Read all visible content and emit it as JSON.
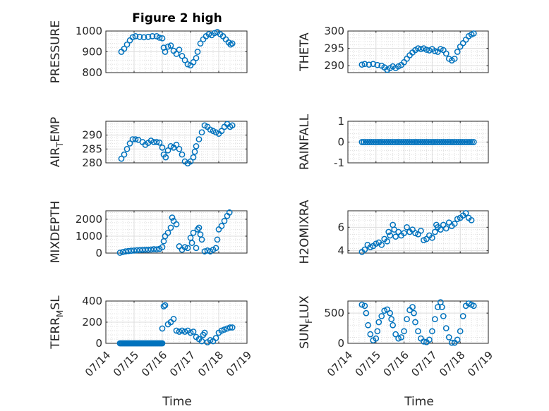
{
  "figure": {
    "title": "Figure 2 high",
    "marker_color": "#0072BD",
    "axes_color": "#262626",
    "grid_color": "#d9d9d9"
  },
  "chart_data": [
    {
      "type": "scatter",
      "marker": "circle",
      "ylabel": "PRESSURE",
      "ylabel_sub": "",
      "ylim": [
        800,
        1000
      ],
      "yticks": [
        800,
        900,
        1000
      ],
      "xlim": [
        0,
        5
      ],
      "xticks": [
        0,
        1,
        2,
        3,
        4,
        5
      ],
      "xtick_labels": [
        "07/14",
        "07/15",
        "07/16",
        "07/17",
        "07/18",
        "07/19"
      ],
      "show_xticks": false,
      "grid": true,
      "minor_grid": true,
      "points": [
        [
          0.55,
          900
        ],
        [
          0.65,
          915
        ],
        [
          0.75,
          935
        ],
        [
          0.85,
          955
        ],
        [
          0.95,
          970
        ],
        [
          1.05,
          975
        ],
        [
          1.2,
          972
        ],
        [
          1.35,
          970
        ],
        [
          1.5,
          972
        ],
        [
          1.65,
          975
        ],
        [
          1.8,
          975
        ],
        [
          1.9,
          968
        ],
        [
          2.0,
          965
        ],
        [
          2.05,
          920
        ],
        [
          2.1,
          900
        ],
        [
          2.2,
          925
        ],
        [
          2.3,
          930
        ],
        [
          2.4,
          905
        ],
        [
          2.5,
          890
        ],
        [
          2.6,
          910
        ],
        [
          2.7,
          880
        ],
        [
          2.8,
          860
        ],
        [
          2.9,
          840
        ],
        [
          3.0,
          835
        ],
        [
          3.1,
          850
        ],
        [
          3.2,
          870
        ],
        [
          3.25,
          900
        ],
        [
          3.35,
          940
        ],
        [
          3.45,
          960
        ],
        [
          3.55,
          975
        ],
        [
          3.65,
          985
        ],
        [
          3.75,
          980
        ],
        [
          3.85,
          990
        ],
        [
          3.95,
          995
        ],
        [
          4.05,
          985
        ],
        [
          4.15,
          975
        ],
        [
          4.25,
          960
        ],
        [
          4.35,
          945
        ],
        [
          4.42,
          935
        ],
        [
          4.48,
          940
        ]
      ]
    },
    {
      "type": "scatter",
      "marker": "circle",
      "ylabel": "THETA",
      "ylabel_sub": "",
      "ylim": [
        288,
        300
      ],
      "yticks": [
        290,
        295,
        300
      ],
      "xlim": [
        0,
        5
      ],
      "xticks": [
        0,
        1,
        2,
        3,
        4,
        5
      ],
      "xtick_labels": [
        "07/14",
        "07/15",
        "07/16",
        "07/17",
        "07/18",
        "07/19"
      ],
      "show_xticks": false,
      "grid": true,
      "minor_grid": true,
      "points": [
        [
          0.5,
          290.3
        ],
        [
          0.6,
          290.5
        ],
        [
          0.75,
          290.3
        ],
        [
          0.9,
          290.5
        ],
        [
          1.05,
          290.2
        ],
        [
          1.2,
          290.0
        ],
        [
          1.3,
          289.5
        ],
        [
          1.4,
          288.8
        ],
        [
          1.5,
          289.3
        ],
        [
          1.6,
          289.8
        ],
        [
          1.7,
          289.3
        ],
        [
          1.8,
          289.8
        ],
        [
          1.9,
          290.2
        ],
        [
          2.0,
          291.0
        ],
        [
          2.1,
          292.0
        ],
        [
          2.2,
          293.0
        ],
        [
          2.3,
          293.8
        ],
        [
          2.4,
          294.5
        ],
        [
          2.5,
          295.0
        ],
        [
          2.6,
          294.8
        ],
        [
          2.7,
          295.0
        ],
        [
          2.8,
          294.6
        ],
        [
          2.9,
          294.4
        ],
        [
          3.0,
          294.8
        ],
        [
          3.1,
          294.2
        ],
        [
          3.2,
          294.0
        ],
        [
          3.3,
          294.8
        ],
        [
          3.4,
          294.5
        ],
        [
          3.5,
          293.5
        ],
        [
          3.6,
          292.0
        ],
        [
          3.7,
          291.5
        ],
        [
          3.8,
          292.0
        ],
        [
          3.9,
          294.0
        ],
        [
          4.0,
          295.5
        ],
        [
          4.1,
          296.5
        ],
        [
          4.2,
          297.5
        ],
        [
          4.3,
          298.5
        ],
        [
          4.4,
          299.0
        ],
        [
          4.48,
          299.3
        ]
      ]
    },
    {
      "type": "scatter",
      "marker": "circle",
      "ylabel": "AIR",
      "ylabel_sub": "T",
      "ylabel_suffix": "EMP",
      "ylim": [
        280,
        295
      ],
      "yticks": [
        280,
        285,
        290
      ],
      "xlim": [
        0,
        5
      ],
      "xticks": [
        0,
        1,
        2,
        3,
        4,
        5
      ],
      "xtick_labels": [
        "07/14",
        "07/15",
        "07/16",
        "07/17",
        "07/18",
        "07/19"
      ],
      "show_xticks": false,
      "grid": true,
      "minor_grid": true,
      "points": [
        [
          0.55,
          281.5
        ],
        [
          0.65,
          283
        ],
        [
          0.75,
          285
        ],
        [
          0.85,
          287
        ],
        [
          0.95,
          288.5
        ],
        [
          1.05,
          288.5
        ],
        [
          1.15,
          288.3
        ],
        [
          1.3,
          287.5
        ],
        [
          1.4,
          286.5
        ],
        [
          1.5,
          287.2
        ],
        [
          1.6,
          288
        ],
        [
          1.7,
          287.5
        ],
        [
          1.8,
          287.5
        ],
        [
          1.9,
          287.3
        ],
        [
          2.0,
          285.5
        ],
        [
          2.05,
          283
        ],
        [
          2.12,
          282
        ],
        [
          2.2,
          284.5
        ],
        [
          2.3,
          286
        ],
        [
          2.4,
          285.5
        ],
        [
          2.5,
          286.5
        ],
        [
          2.6,
          285
        ],
        [
          2.7,
          283
        ],
        [
          2.8,
          280.5
        ],
        [
          2.9,
          279.8
        ],
        [
          3.0,
          280.5
        ],
        [
          3.1,
          282
        ],
        [
          3.15,
          284
        ],
        [
          3.2,
          286
        ],
        [
          3.3,
          288.5
        ],
        [
          3.4,
          291
        ],
        [
          3.5,
          293.5
        ],
        [
          3.6,
          293
        ],
        [
          3.7,
          292
        ],
        [
          3.8,
          291.5
        ],
        [
          3.9,
          291
        ],
        [
          4.0,
          290.5
        ],
        [
          4.1,
          291.5
        ],
        [
          4.2,
          293
        ],
        [
          4.3,
          294
        ],
        [
          4.4,
          293
        ],
        [
          4.48,
          293.5
        ]
      ]
    },
    {
      "type": "scatter",
      "marker": "circle",
      "ylabel": "RAINFALL",
      "ylabel_sub": "",
      "ylim": [
        -1,
        1
      ],
      "yticks": [
        -1,
        0,
        1
      ],
      "xlim": [
        0,
        5
      ],
      "xticks": [
        0,
        1,
        2,
        3,
        4,
        5
      ],
      "xtick_labels": [
        "07/14",
        "07/15",
        "07/16",
        "07/17",
        "07/18",
        "07/19"
      ],
      "show_xticks": false,
      "grid": true,
      "minor_grid": true,
      "points_uniform": {
        "x_start": 0.5,
        "x_end": 4.48,
        "count": 60,
        "y": 0
      }
    },
    {
      "type": "scatter",
      "marker": "circle",
      "ylabel": "MIXDEPTH",
      "ylabel_sub": "",
      "ylim": [
        0,
        2500
      ],
      "yticks": [
        0,
        1000,
        2000
      ],
      "xlim": [
        0,
        5
      ],
      "xticks": [
        0,
        1,
        2,
        3,
        4,
        5
      ],
      "xtick_labels": [
        "07/14",
        "07/15",
        "07/16",
        "07/17",
        "07/18",
        "07/19"
      ],
      "show_xticks": false,
      "grid": true,
      "minor_grid": true,
      "points": [
        [
          0.5,
          20
        ],
        [
          0.6,
          60
        ],
        [
          0.7,
          100
        ],
        [
          0.8,
          120
        ],
        [
          0.9,
          140
        ],
        [
          1.0,
          150
        ],
        [
          1.1,
          170
        ],
        [
          1.2,
          180
        ],
        [
          1.3,
          190
        ],
        [
          1.4,
          200
        ],
        [
          1.5,
          200
        ],
        [
          1.6,
          210
        ],
        [
          1.7,
          230
        ],
        [
          1.8,
          220
        ],
        [
          1.9,
          250
        ],
        [
          2.0,
          350
        ],
        [
          2.05,
          700
        ],
        [
          2.1,
          1000
        ],
        [
          2.2,
          1200
        ],
        [
          2.3,
          1500
        ],
        [
          2.35,
          2100
        ],
        [
          2.4,
          1900
        ],
        [
          2.5,
          1700
        ],
        [
          2.6,
          400
        ],
        [
          2.7,
          200
        ],
        [
          2.8,
          350
        ],
        [
          2.9,
          300
        ],
        [
          3.0,
          900
        ],
        [
          3.05,
          600
        ],
        [
          3.1,
          1200
        ],
        [
          3.2,
          300
        ],
        [
          3.25,
          1400
        ],
        [
          3.3,
          1500
        ],
        [
          3.35,
          1100
        ],
        [
          3.4,
          800
        ],
        [
          3.5,
          100
        ],
        [
          3.6,
          150
        ],
        [
          3.7,
          100
        ],
        [
          3.8,
          200
        ],
        [
          3.9,
          300
        ],
        [
          3.95,
          800
        ],
        [
          4.0,
          1400
        ],
        [
          4.1,
          1600
        ],
        [
          4.2,
          1900
        ],
        [
          4.3,
          2200
        ],
        [
          4.38,
          2400
        ]
      ]
    },
    {
      "type": "scatter",
      "marker": "circle",
      "ylabel": "H2OMIXRA",
      "ylabel_sub": "",
      "ylim": [
        3.8,
        7.4
      ],
      "yticks": [
        4,
        6
      ],
      "xlim": [
        0,
        5
      ],
      "xticks": [
        0,
        1,
        2,
        3,
        4,
        5
      ],
      "xtick_labels": [
        "07/14",
        "07/15",
        "07/16",
        "07/17",
        "07/18",
        "07/19"
      ],
      "show_xticks": false,
      "grid": true,
      "minor_grid": true,
      "points": [
        [
          0.5,
          3.9
        ],
        [
          0.6,
          4.1
        ],
        [
          0.7,
          4.5
        ],
        [
          0.8,
          4.3
        ],
        [
          0.9,
          4.4
        ],
        [
          1.0,
          4.6
        ],
        [
          1.1,
          4.7
        ],
        [
          1.2,
          4.5
        ],
        [
          1.3,
          5.0
        ],
        [
          1.4,
          4.8
        ],
        [
          1.45,
          5.6
        ],
        [
          1.5,
          5.3
        ],
        [
          1.6,
          6.2
        ],
        [
          1.65,
          5.8
        ],
        [
          1.7,
          5.2
        ],
        [
          1.8,
          5.6
        ],
        [
          1.9,
          5.3
        ],
        [
          2.0,
          5.5
        ],
        [
          2.1,
          6.0
        ],
        [
          2.2,
          5.6
        ],
        [
          2.3,
          5.8
        ],
        [
          2.4,
          5.5
        ],
        [
          2.5,
          5.4
        ],
        [
          2.6,
          5.7
        ],
        [
          2.7,
          4.9
        ],
        [
          2.8,
          5.0
        ],
        [
          2.9,
          5.3
        ],
        [
          3.0,
          5.1
        ],
        [
          3.1,
          5.6
        ],
        [
          3.15,
          6.2
        ],
        [
          3.2,
          6.0
        ],
        [
          3.3,
          5.8
        ],
        [
          3.4,
          6.2
        ],
        [
          3.5,
          5.9
        ],
        [
          3.6,
          6.4
        ],
        [
          3.7,
          6.1
        ],
        [
          3.8,
          6.3
        ],
        [
          3.9,
          6.7
        ],
        [
          4.0,
          6.8
        ],
        [
          4.1,
          7.0
        ],
        [
          4.2,
          7.2
        ],
        [
          4.3,
          6.8
        ],
        [
          4.4,
          6.6
        ]
      ]
    },
    {
      "type": "scatter",
      "marker": "circle",
      "ylabel": "TERR",
      "ylabel_sub": "M",
      "ylabel_suffix": "SL",
      "ylim": [
        0,
        400
      ],
      "yticks": [
        0,
        200,
        400
      ],
      "xlim": [
        0,
        5
      ],
      "xticks": [
        0,
        1,
        2,
        3,
        4,
        5
      ],
      "xtick_labels": [
        "07/14",
        "07/15",
        "07/16",
        "07/17",
        "07/18",
        "07/19"
      ],
      "show_xticks": true,
      "grid": true,
      "minor_grid": true,
      "points_uniform": {
        "x_start": 0.5,
        "x_end": 2.0,
        "count": 40,
        "y": 0
      },
      "points": [
        [
          2.0,
          140
        ],
        [
          2.05,
          350
        ],
        [
          2.1,
          360
        ],
        [
          2.2,
          180
        ],
        [
          2.3,
          200
        ],
        [
          2.4,
          230
        ],
        [
          2.5,
          120
        ],
        [
          2.6,
          110
        ],
        [
          2.7,
          120
        ],
        [
          2.8,
          110
        ],
        [
          2.9,
          120
        ],
        [
          3.0,
          100
        ],
        [
          3.1,
          110
        ],
        [
          3.2,
          60
        ],
        [
          3.3,
          40
        ],
        [
          3.4,
          20
        ],
        [
          3.45,
          80
        ],
        [
          3.5,
          100
        ],
        [
          3.6,
          10
        ],
        [
          3.7,
          30
        ],
        [
          3.8,
          20
        ],
        [
          3.9,
          50
        ],
        [
          4.0,
          100
        ],
        [
          4.1,
          120
        ],
        [
          4.2,
          130
        ],
        [
          4.3,
          140
        ],
        [
          4.4,
          150
        ],
        [
          4.48,
          150
        ]
      ]
    },
    {
      "type": "scatter",
      "marker": "circle",
      "ylabel": "SUN",
      "ylabel_sub": "F",
      "ylabel_suffix": "LUX",
      "ylim": [
        0,
        700
      ],
      "yticks": [
        0,
        500
      ],
      "xlim": [
        0,
        5
      ],
      "xticks": [
        0,
        1,
        2,
        3,
        4,
        5
      ],
      "xtick_labels": [
        "07/14",
        "07/15",
        "07/16",
        "07/17",
        "07/18",
        "07/19"
      ],
      "show_xticks": true,
      "grid": true,
      "minor_grid": true,
      "points": [
        [
          0.5,
          640
        ],
        [
          0.6,
          620
        ],
        [
          0.65,
          500
        ],
        [
          0.72,
          300
        ],
        [
          0.8,
          150
        ],
        [
          0.9,
          50
        ],
        [
          1.0,
          80
        ],
        [
          1.05,
          200
        ],
        [
          1.1,
          350
        ],
        [
          1.2,
          450
        ],
        [
          1.3,
          540
        ],
        [
          1.4,
          560
        ],
        [
          1.5,
          500
        ],
        [
          1.55,
          400
        ],
        [
          1.6,
          300
        ],
        [
          1.7,
          150
        ],
        [
          1.8,
          80
        ],
        [
          1.9,
          100
        ],
        [
          2.0,
          200
        ],
        [
          2.1,
          400
        ],
        [
          2.2,
          550
        ],
        [
          2.3,
          600
        ],
        [
          2.35,
          500
        ],
        [
          2.4,
          350
        ],
        [
          2.5,
          200
        ],
        [
          2.6,
          80
        ],
        [
          2.7,
          30
        ],
        [
          2.8,
          20
        ],
        [
          2.9,
          60
        ],
        [
          3.0,
          200
        ],
        [
          3.1,
          400
        ],
        [
          3.2,
          600
        ],
        [
          3.3,
          680
        ],
        [
          3.35,
          600
        ],
        [
          3.4,
          450
        ],
        [
          3.5,
          250
        ],
        [
          3.6,
          100
        ],
        [
          3.7,
          10
        ],
        [
          3.8,
          10
        ],
        [
          3.9,
          60
        ],
        [
          4.0,
          200
        ],
        [
          4.1,
          450
        ],
        [
          4.2,
          620
        ],
        [
          4.3,
          660
        ],
        [
          4.4,
          640
        ],
        [
          4.48,
          620
        ]
      ]
    }
  ],
  "xlabel": "Time"
}
